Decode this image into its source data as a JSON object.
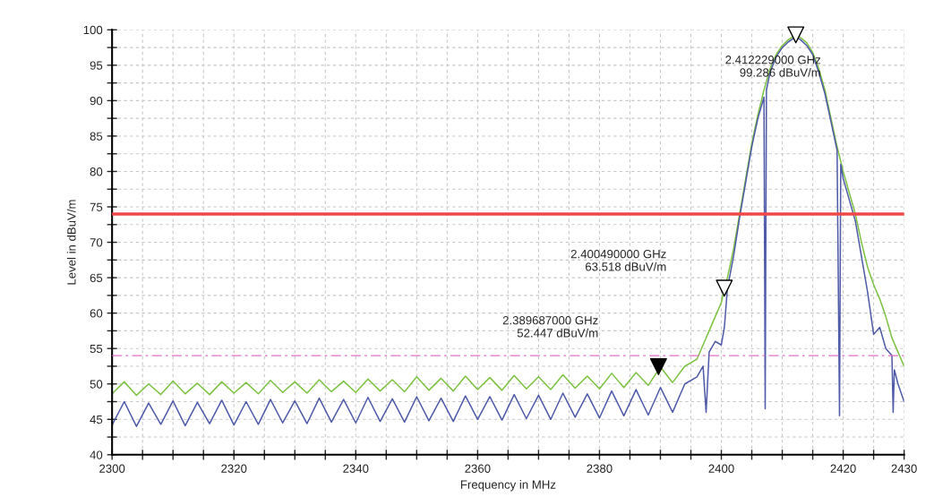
{
  "chart_data": {
    "type": "line",
    "xlabel": "Frequency in MHz",
    "ylabel": "Level in dBuV/m",
    "xlim": [
      2300,
      2430
    ],
    "ylim": [
      40,
      100
    ],
    "xticks": [
      2300,
      {
        "value": 2305,
        "label": null
      },
      {
        "value": 2310,
        "label": null
      },
      {
        "value": 2315,
        "label": null
      },
      2320,
      {
        "value": 2325,
        "label": null
      },
      {
        "value": 2330,
        "label": null
      },
      {
        "value": 2335,
        "label": null
      },
      2340,
      {
        "value": 2345,
        "label": null
      },
      {
        "value": 2350,
        "label": null
      },
      {
        "value": 2355,
        "label": null
      },
      2360,
      {
        "value": 2365,
        "label": null
      },
      {
        "value": 2370,
        "label": null
      },
      {
        "value": 2375,
        "label": null
      },
      2380,
      {
        "value": 2385,
        "label": null
      },
      {
        "value": 2390,
        "label": null
      },
      {
        "value": 2395,
        "label": null
      },
      2400,
      {
        "value": 2405,
        "label": null
      },
      {
        "value": 2410,
        "label": null
      },
      {
        "value": 2415,
        "label": null
      },
      2420,
      {
        "value": 2425,
        "label": null
      },
      2430
    ],
    "yticks": [
      40,
      {
        "value": 42.5,
        "label": null
      },
      45,
      {
        "value": 47.5,
        "label": null
      },
      50,
      {
        "value": 52.5,
        "label": null
      },
      55,
      {
        "value": 57.5,
        "label": null
      },
      60,
      {
        "value": 62.5,
        "label": null
      },
      65,
      {
        "value": 67.5,
        "label": null
      },
      70,
      {
        "value": 72.5,
        "label": null
      },
      75,
      {
        "value": 77.5,
        "label": null
      },
      80,
      {
        "value": 82.5,
        "label": null
      },
      85,
      {
        "value": 87.5,
        "label": null
      },
      90,
      {
        "value": 92.5,
        "label": null
      },
      95,
      {
        "value": 97.5,
        "label": null
      },
      100
    ],
    "grid": true,
    "legend": false,
    "line_style": "solid",
    "series": [
      {
        "type": "line",
        "color": "#7dc242",
        "x": [
          2300,
          2302,
          2304,
          2306,
          2308,
          2310,
          2312,
          2314,
          2316,
          2318,
          2320,
          2322,
          2324,
          2326,
          2328,
          2330,
          2332,
          2334,
          2336,
          2338,
          2340,
          2342,
          2344,
          2346,
          2348,
          2350,
          2352,
          2354,
          2356,
          2358,
          2360,
          2362,
          2364,
          2366,
          2368,
          2370,
          2372,
          2374,
          2376,
          2378,
          2380,
          2382,
          2384,
          2386,
          2388,
          2390,
          2392,
          2394,
          2396,
          2397,
          2398,
          2399,
          2400,
          2400.5,
          2401,
          2402,
          2403,
          2404,
          2405,
          2406,
          2407,
          2408,
          2409,
          2410,
          2411,
          2412.2,
          2413,
          2414,
          2415,
          2416,
          2417,
          2418,
          2419,
          2420,
          2421,
          2422,
          2423,
          2424,
          2425,
          2426,
          2427,
          2428,
          2429,
          2430
        ],
        "values": [
          48.6,
          50.3,
          48.4,
          50.0,
          48.5,
          50.4,
          48.6,
          50.1,
          48.5,
          50.3,
          48.7,
          50.2,
          48.6,
          50.5,
          48.8,
          50.3,
          48.7,
          50.6,
          48.9,
          50.4,
          48.8,
          50.7,
          49.0,
          50.6,
          48.9,
          51.0,
          49.1,
          50.8,
          49.0,
          51.1,
          49.2,
          50.9,
          49.1,
          51.2,
          49.3,
          51.0,
          49.2,
          51.3,
          49.4,
          51.1,
          49.3,
          51.5,
          49.5,
          51.6,
          49.8,
          52.4,
          50.2,
          52.5,
          53.5,
          55.5,
          57.5,
          59.5,
          61.5,
          63.5,
          65,
          69,
          74,
          79,
          84,
          88,
          91.5,
          94.5,
          96.5,
          97.8,
          98.6,
          99.3,
          98.9,
          98.2,
          96.8,
          94.5,
          91.5,
          87.5,
          83.5,
          80,
          77,
          74,
          70,
          66.5,
          64,
          62,
          59.5,
          56.5,
          54.5,
          52.5
        ]
      },
      {
        "type": "line",
        "color": "#4f5ba8",
        "x": [
          2300,
          2302,
          2304,
          2306,
          2308,
          2310,
          2312,
          2314,
          2316,
          2318,
          2320,
          2322,
          2324,
          2326,
          2328,
          2330,
          2332,
          2334,
          2336,
          2338,
          2340,
          2342,
          2344,
          2346,
          2348,
          2350,
          2352,
          2354,
          2356,
          2358,
          2360,
          2362,
          2364,
          2366,
          2368,
          2370,
          2372,
          2374,
          2376,
          2378,
          2380,
          2382,
          2384,
          2386,
          2388,
          2390,
          2392,
          2394,
          2396,
          2397,
          2397.5,
          2398,
          2399,
          2400,
          2400.5,
          2401,
          2402,
          2403,
          2404,
          2405,
          2406,
          2407,
          2407.2,
          2407.4,
          2408,
          2409,
          2410,
          2411,
          2412.2,
          2413,
          2414,
          2415,
          2416,
          2417,
          2418,
          2419,
          2419.4,
          2419.6,
          2420,
          2421,
          2422,
          2423,
          2424,
          2425,
          2426,
          2427,
          2428,
          2428.2,
          2428.4,
          2429,
          2430
        ],
        "values": [
          44.2,
          47.5,
          44.0,
          47.3,
          44.3,
          47.6,
          44.1,
          47.4,
          44.4,
          47.7,
          44.2,
          47.5,
          44.3,
          47.8,
          44.5,
          47.6,
          44.4,
          48.0,
          44.6,
          47.8,
          44.5,
          48.1,
          44.7,
          47.9,
          44.6,
          48.2,
          44.8,
          48.0,
          44.7,
          48.3,
          45.0,
          48.2,
          44.9,
          48.5,
          45.1,
          48.4,
          45.0,
          48.7,
          45.3,
          48.6,
          45.2,
          49.0,
          45.5,
          49.2,
          45.6,
          49.5,
          46.0,
          50.0,
          51,
          52.5,
          46,
          54.5,
          56,
          55.5,
          58,
          63.5,
          68,
          73.5,
          78.5,
          83.5,
          87.5,
          90.5,
          46.5,
          91.5,
          94,
          96.2,
          97.5,
          98.3,
          99.0,
          98.6,
          97.8,
          96.5,
          94,
          91,
          87,
          83,
          45.5,
          81,
          79,
          76,
          73,
          68,
          63,
          57,
          58,
          55,
          54,
          46,
          52,
          50,
          47.5
        ]
      },
      {
        "type": "scatter",
        "marker": "triangle",
        "color": "#000000",
        "x": [
          2389.687
        ],
        "values": [
          52.447
        ]
      },
      {
        "type": "scatter",
        "marker": "triangle",
        "color": "#ffffff",
        "x": [
          2400.49,
          2412.229
        ],
        "values": [
          63.518,
          99.286
        ]
      }
    ],
    "ref_lines": [
      {
        "axis": "y",
        "value": 74,
        "color": "#f04848",
        "line_style": "solid"
      },
      {
        "axis": "y",
        "value": 54,
        "color": "#e070c8",
        "line_style": "dashed"
      }
    ],
    "annotations": [
      "2.389687000 GHz\n52.447 dBuV/m",
      "2.400490000 GHz\n63.518 dBuV/m",
      "2.412229000 GHz\n99.286 dBuV/m"
    ]
  }
}
